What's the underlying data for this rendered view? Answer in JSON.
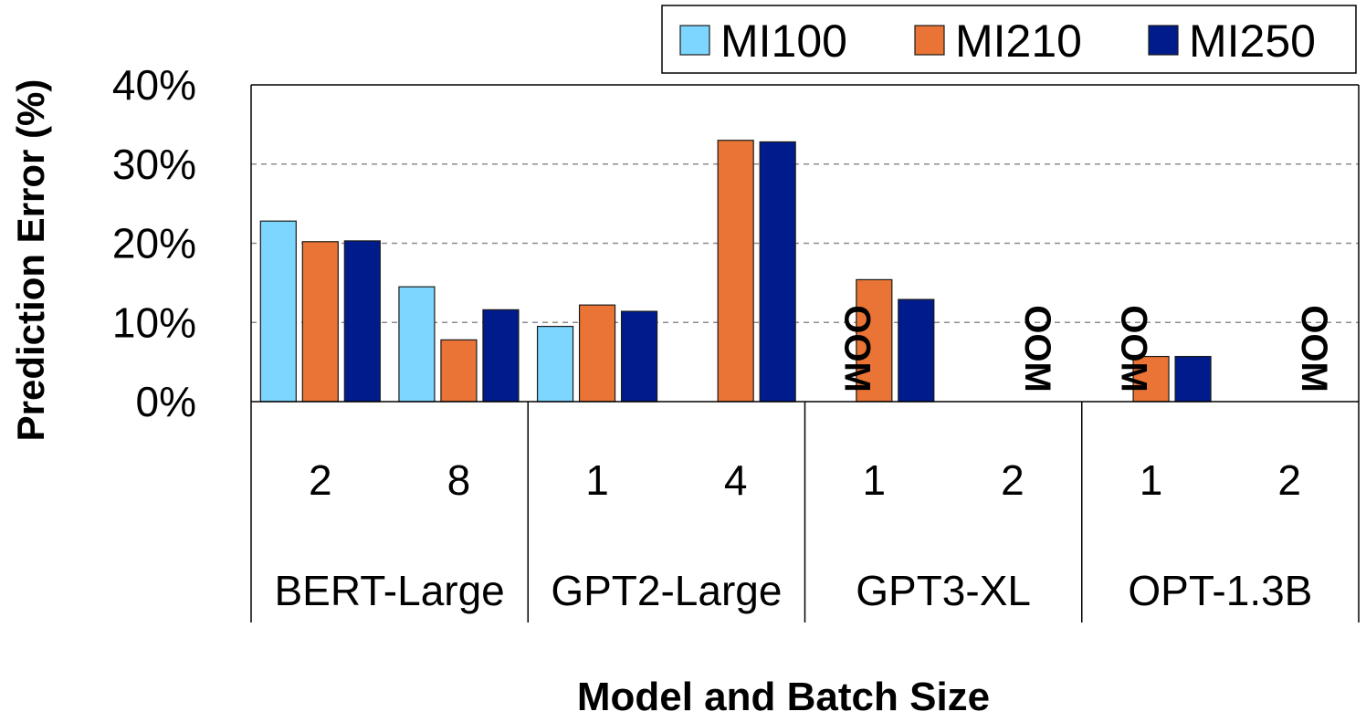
{
  "chart_data": {
    "type": "bar",
    "title": "",
    "ylabel": "Prediction Error (%)",
    "xlabel": "Model and Batch Size",
    "ylim": [
      0,
      40
    ],
    "yticks": [
      "0%",
      "10%",
      "20%",
      "30%",
      "40%"
    ],
    "grid": "horizontal dashed at 10%, 20%, 30%",
    "legend_position": "top-right",
    "groups": [
      {
        "model": "BERT-Large",
        "batches": [
          "2",
          "8"
        ]
      },
      {
        "model": "GPT2-Large",
        "batches": [
          "1",
          "4"
        ]
      },
      {
        "model": "GPT3-XL",
        "batches": [
          "1",
          "2"
        ]
      },
      {
        "model": "OPT-1.3B",
        "batches": [
          "1",
          "2"
        ]
      }
    ],
    "categories": [
      "BERT-Large 2",
      "BERT-Large 8",
      "GPT2-Large 1",
      "GPT2-Large 4",
      "GPT3-XL 1",
      "GPT3-XL 2",
      "OPT-1.3B 1",
      "OPT-1.3B 2"
    ],
    "series": [
      {
        "name": "MI100",
        "color": "#7dd6ff",
        "values": [
          22.8,
          14.5,
          9.5,
          null,
          null,
          null,
          null,
          null
        ]
      },
      {
        "name": "MI210",
        "color": "#e97435",
        "values": [
          20.2,
          7.8,
          12.2,
          33.0,
          15.4,
          null,
          5.7,
          null
        ]
      },
      {
        "name": "MI250",
        "color": "#001c8c",
        "values": [
          20.3,
          11.6,
          11.4,
          32.8,
          12.9,
          null,
          5.7,
          null
        ]
      }
    ],
    "annotations": [
      {
        "category_index": 4,
        "series": "MI100",
        "text": "OOM"
      },
      {
        "category_index": 5,
        "series": "MI210",
        "text": "OOM"
      },
      {
        "category_index": 6,
        "series": "MI100",
        "text": "OOM"
      },
      {
        "category_index": 7,
        "series": "MI210",
        "text": "OOM"
      }
    ]
  }
}
